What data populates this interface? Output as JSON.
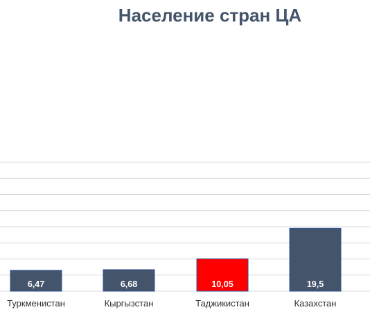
{
  "chart_data": {
    "type": "bar",
    "title": "Население стран ЦА",
    "categories": [
      "Туркменистан",
      "Кыргызстан",
      "Таджикистан",
      "Казахстан"
    ],
    "values": [
      6.47,
      6.68,
      10.05,
      19.5
    ],
    "value_labels": [
      "6,47",
      "6,68",
      "10,05",
      "19,5"
    ],
    "ylim": [
      0,
      40
    ],
    "grid": true,
    "colors": {
      "default_bar": "#44546a",
      "highlight_bar": "#ff0000",
      "highlight_index": 2,
      "title": "#44546a"
    }
  }
}
